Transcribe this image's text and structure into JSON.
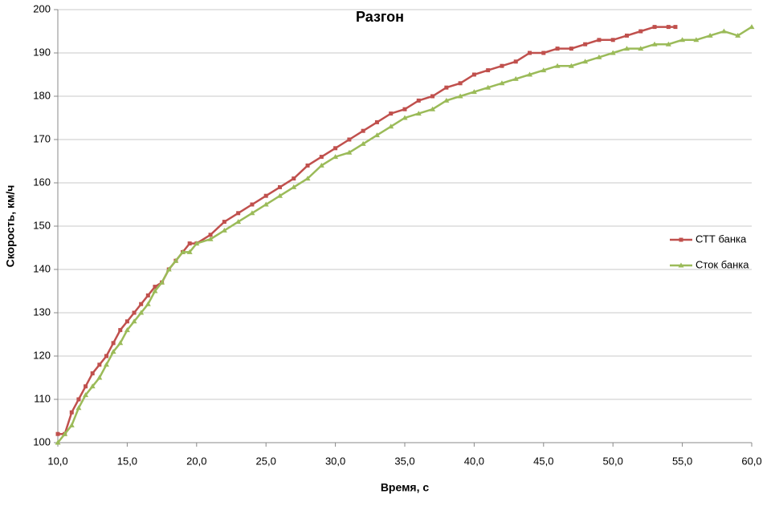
{
  "chart_data": {
    "type": "line",
    "title": "Разгон",
    "x_label": "Время, с",
    "y_label": "Скорость, км/ч",
    "xlim": [
      10,
      60
    ],
    "ylim": [
      100,
      200
    ],
    "xticks": [
      {
        "value": 10,
        "label": "10,0"
      },
      {
        "value": 15,
        "label": "15,0"
      },
      {
        "value": 20,
        "label": "20,0"
      },
      {
        "value": 25,
        "label": "25,0"
      },
      {
        "value": 30,
        "label": "30,0"
      },
      {
        "value": 35,
        "label": "35,0"
      },
      {
        "value": 40,
        "label": "40,0"
      },
      {
        "value": 45,
        "label": "45,0"
      },
      {
        "value": 50,
        "label": "50,0"
      },
      {
        "value": 55,
        "label": "55,0"
      },
      {
        "value": 60,
        "label": "60,0"
      }
    ],
    "yticks": [
      100,
      110,
      120,
      130,
      140,
      150,
      160,
      170,
      180,
      190,
      200
    ],
    "grid": true,
    "legend": "right",
    "series": [
      {
        "name": "СТТ банка",
        "color": "#c0504d",
        "marker": "square",
        "x": [
          10,
          10.5,
          11,
          11.5,
          12,
          12.5,
          13,
          13.5,
          14,
          14.5,
          15,
          15.5,
          16,
          16.5,
          17,
          17.5,
          18,
          18.5,
          19,
          19.5,
          20,
          21,
          22,
          23,
          24,
          25,
          26,
          27,
          28,
          29,
          30,
          31,
          32,
          33,
          34,
          35,
          36,
          37,
          38,
          39,
          40,
          41,
          42,
          43,
          44,
          45,
          46,
          47,
          48,
          49,
          50,
          51,
          52,
          53,
          54,
          54.5
        ],
        "values": [
          102,
          102,
          107,
          110,
          113,
          116,
          118,
          120,
          123,
          126,
          128,
          130,
          132,
          134,
          136,
          137,
          140,
          142,
          144,
          146,
          146,
          148,
          151,
          153,
          155,
          157,
          159,
          161,
          164,
          166,
          168,
          170,
          172,
          174,
          176,
          177,
          179,
          180,
          182,
          183,
          185,
          186,
          187,
          188,
          190,
          190,
          191,
          191,
          192,
          193,
          193,
          194,
          195,
          196,
          196,
          196
        ]
      },
      {
        "name": "Сток банка",
        "color": "#9bbb59",
        "marker": "triangle",
        "x": [
          10,
          10.5,
          11,
          11.5,
          12,
          12.5,
          13,
          13.5,
          14,
          14.5,
          15,
          15.5,
          16,
          16.5,
          17,
          17.5,
          18,
          18.5,
          19,
          19.5,
          20,
          21,
          22,
          23,
          24,
          25,
          26,
          27,
          28,
          29,
          30,
          31,
          32,
          33,
          34,
          35,
          36,
          37,
          38,
          39,
          40,
          41,
          42,
          43,
          44,
          45,
          46,
          47,
          48,
          49,
          50,
          51,
          52,
          53,
          54,
          55,
          56,
          57,
          58,
          59,
          60
        ],
        "values": [
          100,
          102,
          104,
          108,
          111,
          113,
          115,
          118,
          121,
          123,
          126,
          128,
          130,
          132,
          135,
          137,
          140,
          142,
          144,
          144,
          146,
          147,
          149,
          151,
          153,
          155,
          157,
          159,
          161,
          164,
          166,
          167,
          169,
          171,
          173,
          175,
          176,
          177,
          179,
          180,
          181,
          182,
          183,
          184,
          185,
          186,
          187,
          187,
          188,
          189,
          190,
          191,
          191,
          192,
          192,
          193,
          193,
          194,
          195,
          194,
          196
        ]
      }
    ]
  }
}
